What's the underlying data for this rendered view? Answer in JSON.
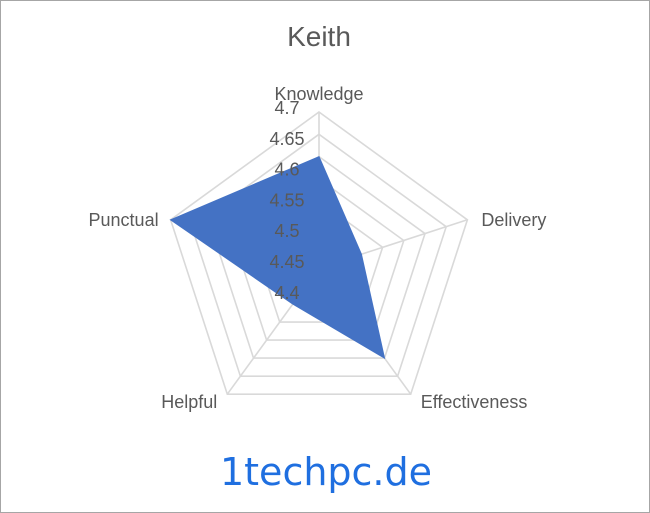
{
  "chart_data": {
    "type": "radar",
    "title": "Keith",
    "categories": [
      "Knowledge",
      "Delivery",
      "Effectiveness",
      "Helpful",
      "Punctual"
    ],
    "series": [
      {
        "values": [
          4.6,
          4.45,
          4.6,
          4.45,
          4.7
        ]
      }
    ],
    "rlim": [
      4.35,
      4.7
    ],
    "ticks": [
      "4.4",
      "4.45",
      "4.5",
      "4.55",
      "4.6",
      "4.65",
      "4.7"
    ],
    "grid": true,
    "legend": "none",
    "fill_color": "#4472c4",
    "grid_color": "#d9d9d9"
  },
  "watermark": "1techpc.de"
}
